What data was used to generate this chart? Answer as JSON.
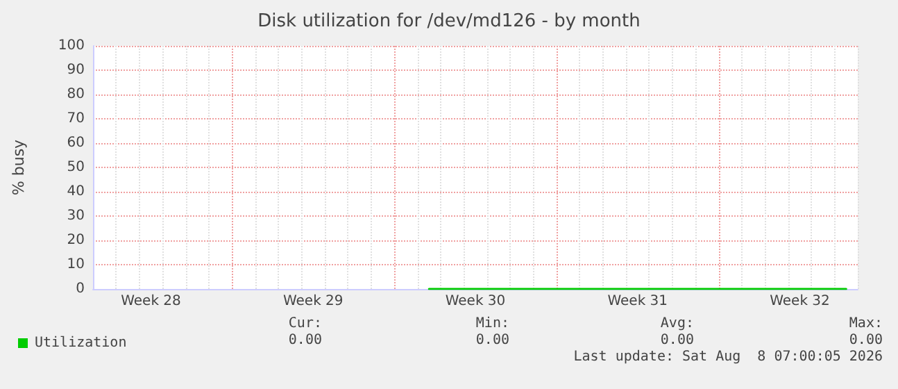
{
  "chart_data": {
    "type": "line",
    "title": "Disk utilization for /dev/md126 - by month",
    "ylabel": "% busy",
    "categories": [
      null,
      null,
      "Week 28",
      null,
      null,
      null,
      null,
      null,
      null,
      "Week 29",
      null,
      null,
      null,
      null,
      null,
      null,
      "Week 30",
      null,
      null,
      null,
      null,
      null,
      null,
      "Week 31",
      null,
      null,
      null,
      null,
      null,
      null,
      "Week 32",
      null,
      null
    ],
    "series": [
      {
        "name": "Utilization",
        "color": "#00cc00",
        "values": [
          null,
          null,
          null,
          null,
          null,
          null,
          null,
          null,
          null,
          null,
          null,
          null,
          null,
          null,
          0,
          0,
          0,
          0,
          0,
          0,
          0,
          0,
          0,
          0,
          0,
          0,
          0,
          0,
          0,
          0,
          0,
          0,
          0
        ]
      }
    ],
    "ylim": [
      0,
      100
    ],
    "yticks": [
      0,
      10,
      20,
      30,
      40,
      50,
      60,
      70,
      80,
      90,
      100
    ],
    "grid": true,
    "legend": "bottom left",
    "marker": "none",
    "line_style": "solid",
    "annotations": [
      "Cur:",
      "Min:",
      "Avg:",
      "Max:",
      "0.00",
      "0.00",
      "0.00",
      "0.00",
      "Last update: Sat Aug  8 07:00:05 2026"
    ]
  }
}
